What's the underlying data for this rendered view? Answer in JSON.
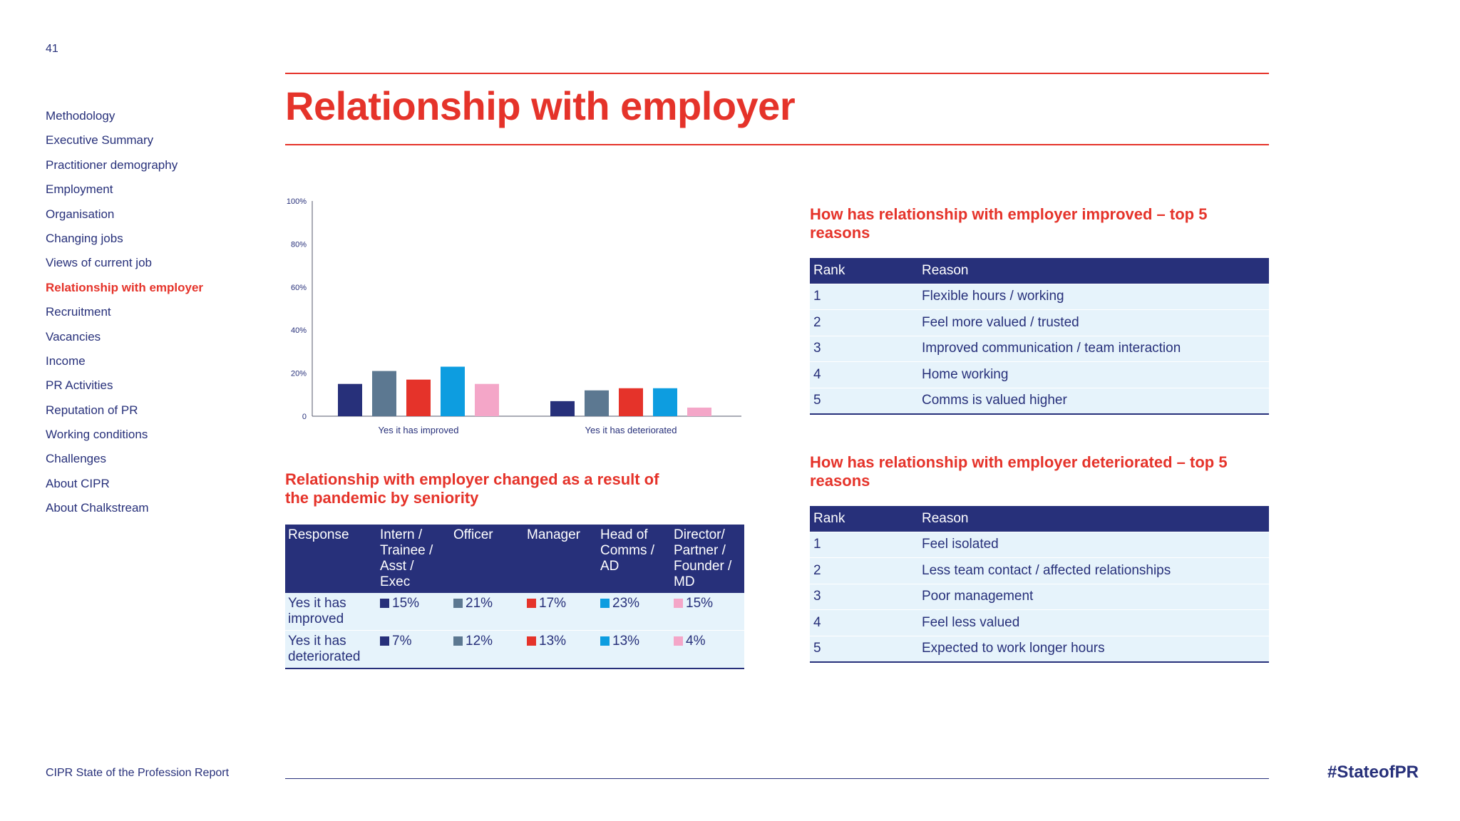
{
  "page_number": "41",
  "title": "Relationship with employer",
  "sidebar": {
    "items": [
      {
        "label": "Methodology",
        "active": false
      },
      {
        "label": "Executive Summary",
        "active": false
      },
      {
        "label": "Practitioner demography",
        "active": false
      },
      {
        "label": "Employment",
        "active": false
      },
      {
        "label": "Organisation",
        "active": false
      },
      {
        "label": "Changing jobs",
        "active": false
      },
      {
        "label": "Views of current job",
        "active": false
      },
      {
        "label": "Relationship with employer",
        "active": true
      },
      {
        "label": "Recruitment",
        "active": false
      },
      {
        "label": "Vacancies",
        "active": false
      },
      {
        "label": "Income",
        "active": false
      },
      {
        "label": "PR Activities",
        "active": false
      },
      {
        "label": "Reputation of PR",
        "active": false
      },
      {
        "label": "Working conditions",
        "active": false
      },
      {
        "label": "Challenges",
        "active": false
      },
      {
        "label": "About CIPR",
        "active": false
      },
      {
        "label": "About Chalkstream",
        "active": false
      }
    ]
  },
  "footer": {
    "left": "CIPR State of the Profession Report",
    "right": "#StateofPR"
  },
  "colors": {
    "navy": "#27307a",
    "red": "#e5332a",
    "light_blue_bg": "#e6f3fb",
    "series": [
      "#27307a",
      "#5c7891",
      "#e5332a",
      "#0d9de0",
      "#f4a6c8"
    ]
  },
  "chart_data": {
    "type": "bar",
    "categories": [
      "Yes it has improved",
      "Yes it has deteriorated"
    ],
    "series": [
      {
        "name": "Intern / Trainee / Asst / Exec",
        "values": [
          15,
          7
        ]
      },
      {
        "name": "Officer",
        "values": [
          21,
          12
        ]
      },
      {
        "name": "Manager",
        "values": [
          17,
          13
        ]
      },
      {
        "name": "Head of Comms / AD",
        "values": [
          23,
          13
        ]
      },
      {
        "name": "Director/ Partner / Founder / MD",
        "values": [
          15,
          4
        ]
      }
    ],
    "ylim": [
      0,
      100
    ],
    "yticks": [
      {
        "value": 0,
        "label": "0"
      },
      {
        "value": 20,
        "label": "20%"
      },
      {
        "value": 40,
        "label": "40%"
      },
      {
        "value": 60,
        "label": "60%"
      },
      {
        "value": 80,
        "label": "80%"
      },
      {
        "value": 100,
        "label": "100%"
      }
    ],
    "grid": false,
    "legend": "none"
  },
  "seniority": {
    "heading": "Relationship with employer changed as a result of the pandemic by seniority",
    "headers": [
      "Response",
      "Intern / Trainee / Asst / Exec",
      "Officer",
      "Manager",
      "Head of Comms / AD",
      "Director/ Partner / Founder / MD"
    ],
    "rows": [
      {
        "response": "Yes it has improved",
        "values": [
          "15%",
          "21%",
          "17%",
          "23%",
          "15%"
        ]
      },
      {
        "response": "Yes it has deteriorated",
        "values": [
          "7%",
          "12%",
          "13%",
          "13%",
          "4%"
        ]
      }
    ]
  },
  "improved": {
    "heading": "How has relationship with employer improved – top 5 reasons",
    "headers": [
      "Rank",
      "Reason"
    ],
    "rows": [
      {
        "rank": "1",
        "reason": "Flexible hours / working"
      },
      {
        "rank": "2",
        "reason": "Feel more valued / trusted"
      },
      {
        "rank": "3",
        "reason": "Improved communication / team interaction"
      },
      {
        "rank": "4",
        "reason": "Home working"
      },
      {
        "rank": "5",
        "reason": "Comms is valued higher"
      }
    ]
  },
  "deteriorated": {
    "heading": "How has relationship with employer deteriorated – top 5 reasons",
    "headers": [
      "Rank",
      "Reason"
    ],
    "rows": [
      {
        "rank": "1",
        "reason": "Feel isolated"
      },
      {
        "rank": "2",
        "reason": "Less team contact / affected relationships"
      },
      {
        "rank": "3",
        "reason": "Poor management"
      },
      {
        "rank": "4",
        "reason": "Feel less valued"
      },
      {
        "rank": "5",
        "reason": "Expected to work longer hours"
      }
    ]
  }
}
